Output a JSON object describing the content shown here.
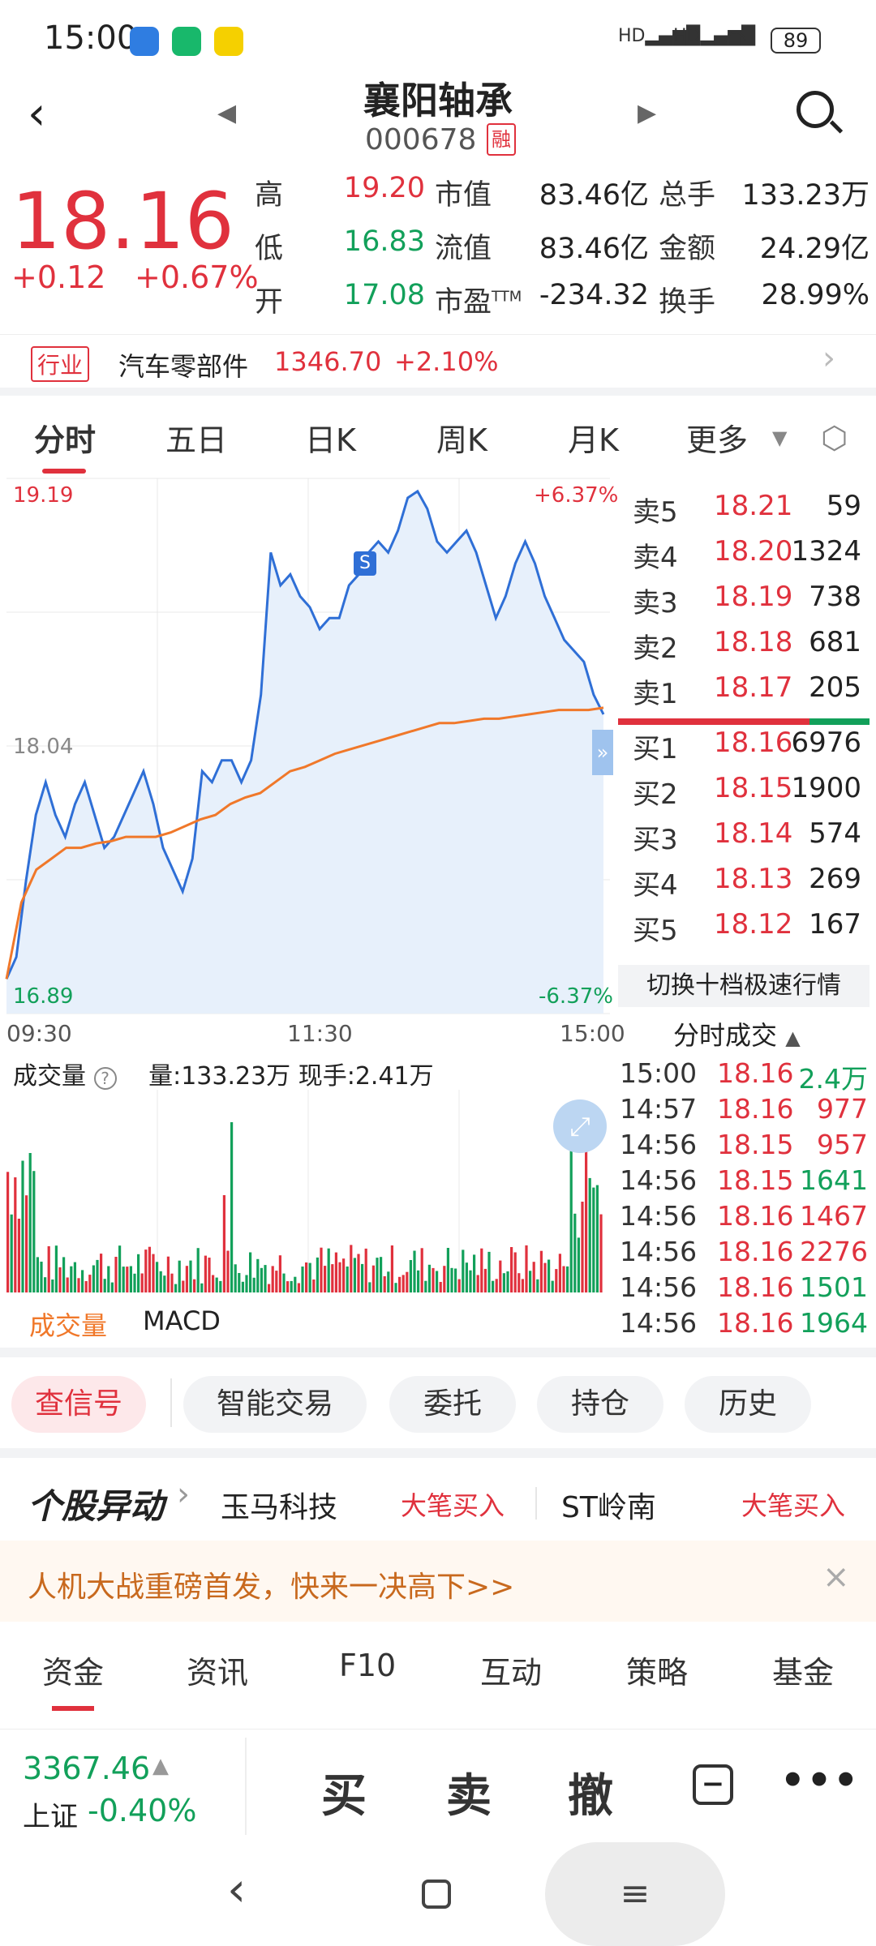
{
  "status_bar": {
    "time": "15:00",
    "battery": "89",
    "network1": "HD",
    "network2": "HD"
  },
  "header": {
    "title": "襄阳轴承",
    "code": "000678",
    "margin_badge": "融"
  },
  "quote": {
    "price": "18.16",
    "change": "+0.12",
    "change_pct": "+0.67%",
    "high_label": "高",
    "high": "19.20",
    "low_label": "低",
    "low": "16.83",
    "open_label": "开",
    "open": "17.08",
    "mcap_label": "市值",
    "mcap": "83.46亿",
    "float_label": "流值",
    "float": "83.46亿",
    "pe_label": "市盈",
    "pe_sup": "TTM",
    "pe": "-234.32",
    "vol_label": "总手",
    "vol": "133.23万",
    "amount_label": "金额",
    "amount": "24.29亿",
    "turnover_label": "换手",
    "turnover": "28.99%"
  },
  "industry": {
    "tag": "行业",
    "name": "汽车零部件",
    "price": "1346.70",
    "change": "+2.10%"
  },
  "chart_tabs": [
    "分时",
    "五日",
    "日K",
    "周K",
    "月K",
    "更多"
  ],
  "chart": {
    "top_price": "19.19",
    "mid_price": "18.04",
    "bottom_price": "16.89",
    "top_pct": "+6.37%",
    "bottom_pct": "-6.37%",
    "time_start": "09:30",
    "time_mid": "11:30",
    "time_end": "15:00",
    "marker": "S"
  },
  "chart_data": {
    "type": "line",
    "series": [],
    "price_points": [
      16.95,
      17.05,
      17.4,
      17.7,
      17.85,
      17.7,
      17.6,
      17.75,
      17.85,
      17.7,
      17.55,
      17.6,
      17.7,
      17.8,
      17.9,
      17.75,
      17.55,
      17.45,
      17.35,
      17.5,
      17.9,
      17.85,
      17.95,
      17.95,
      17.85,
      17.95,
      18.25,
      18.9,
      18.75,
      18.8,
      18.7,
      18.65,
      18.55,
      18.6,
      18.6,
      18.75,
      18.8,
      18.9,
      18.95,
      18.9,
      19.0,
      19.15,
      19.18,
      19.1,
      18.95,
      18.9,
      18.95,
      19.0,
      18.9,
      18.75,
      18.6,
      18.7,
      18.85,
      18.95,
      18.85,
      18.7,
      18.6,
      18.5,
      18.45,
      18.4,
      18.25,
      18.16
    ],
    "avg_points": [
      16.95,
      17.3,
      17.45,
      17.5,
      17.55,
      17.55,
      17.57,
      17.58,
      17.6,
      17.6,
      17.6,
      17.62,
      17.65,
      17.68,
      17.7,
      17.75,
      17.78,
      17.8,
      17.85,
      17.9,
      17.92,
      17.95,
      17.98,
      18.0,
      18.02,
      18.04,
      18.06,
      18.08,
      18.1,
      18.12,
      18.12,
      18.13,
      18.14,
      18.14,
      18.15,
      18.16,
      18.17,
      18.18,
      18.18,
      18.18,
      18.19
    ],
    "ylim": [
      16.89,
      19.19
    ]
  },
  "volume": {
    "label": "成交量",
    "summary": "量:133.23万  现手:2.41万",
    "subtabs": [
      "成交量",
      "MACD"
    ]
  },
  "orderbook": {
    "sell": [
      {
        "label": "卖5",
        "price": "18.21",
        "vol": "59"
      },
      {
        "label": "卖4",
        "price": "18.20",
        "vol": "1324"
      },
      {
        "label": "卖3",
        "price": "18.19",
        "vol": "738"
      },
      {
        "label": "卖2",
        "price": "18.18",
        "vol": "681"
      },
      {
        "label": "卖1",
        "price": "18.17",
        "vol": "205"
      }
    ],
    "buy": [
      {
        "label": "买1",
        "price": "18.16",
        "vol": "6976"
      },
      {
        "label": "买2",
        "price": "18.15",
        "vol": "1900"
      },
      {
        "label": "买3",
        "price": "18.14",
        "vol": "574"
      },
      {
        "label": "买4",
        "price": "18.13",
        "vol": "269"
      },
      {
        "label": "买5",
        "price": "18.12",
        "vol": "167"
      }
    ],
    "switch_label": "切换十档极速行情"
  },
  "trades": {
    "title": "分时成交",
    "rows": [
      {
        "time": "15:00",
        "price": "18.16",
        "vol": "2.4万",
        "dir": "buy"
      },
      {
        "time": "14:57",
        "price": "18.16",
        "vol": "977",
        "dir": "sell"
      },
      {
        "time": "14:56",
        "price": "18.15",
        "vol": "957",
        "dir": "sell"
      },
      {
        "time": "14:56",
        "price": "18.15",
        "vol": "1641",
        "dir": "buy"
      },
      {
        "time": "14:56",
        "price": "18.16",
        "vol": "1467",
        "dir": "sell"
      },
      {
        "time": "14:56",
        "price": "18.16",
        "vol": "2276",
        "dir": "sell"
      },
      {
        "time": "14:56",
        "price": "18.16",
        "vol": "1501",
        "dir": "buy"
      },
      {
        "time": "14:56",
        "price": "18.16",
        "vol": "1964",
        "dir": "buy"
      }
    ]
  },
  "actions": [
    "查信号",
    "智能交易",
    "委托",
    "持仓",
    "历史"
  ],
  "ticker": {
    "title": "个股异动",
    "items": [
      {
        "name": "玉马科技",
        "tag": "大笔买入"
      },
      {
        "name": "ST岭南",
        "tag": "大笔买入"
      }
    ]
  },
  "promo": {
    "text": "人机大战重磅首发，快来一决高下>>"
  },
  "bottom_tabs": [
    "资金",
    "资讯",
    "F10",
    "互动",
    "策略",
    "基金"
  ],
  "index": {
    "value": "3367.46",
    "name": "上证",
    "change": "-0.40%"
  },
  "trade_buttons": {
    "buy": "买",
    "sell": "卖",
    "cancel": "撤"
  },
  "colors": {
    "up": "#e0313d",
    "down": "#12a05a",
    "price_line": "#2f6fd6",
    "avg_line": "#f0782a",
    "accent": "#e0313d"
  }
}
